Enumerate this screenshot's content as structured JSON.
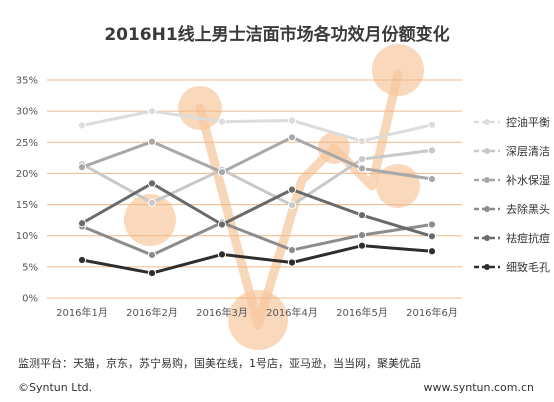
{
  "chart_data": {
    "type": "line",
    "title": "2016H1线上男士洁面市场各功效月份额变化",
    "categories": [
      "2016年1月",
      "2016年2月",
      "2016年3月",
      "2016年4月",
      "2016年5月",
      "2016年6月"
    ],
    "yticks": [
      "0%",
      "5%",
      "10%",
      "15%",
      "20%",
      "25%",
      "30%",
      "35%"
    ],
    "ylim": [
      0,
      35
    ],
    "grid": true,
    "legend_position": "right",
    "series": [
      {
        "name": "控油平衡",
        "color": "#dcdcdc",
        "values": [
          27.7,
          30.0,
          28.3,
          28.5,
          25.2,
          27.8
        ]
      },
      {
        "name": "深层清洁",
        "color": "#c8c8c8",
        "values": [
          21.5,
          15.3,
          20.6,
          14.9,
          22.3,
          23.7
        ]
      },
      {
        "name": "补水保湿",
        "color": "#a8a8a8",
        "values": [
          21.0,
          25.1,
          20.2,
          25.8,
          20.8,
          19.1
        ]
      },
      {
        "name": "去除黑头",
        "color": "#8c8c8c",
        "values": [
          11.5,
          6.9,
          12.1,
          7.7,
          10.1,
          11.8
        ]
      },
      {
        "name": "祛痘抗痘",
        "color": "#6a6a6a",
        "values": [
          12.0,
          18.4,
          11.8,
          17.4,
          13.3,
          9.9
        ]
      },
      {
        "name": "细致毛孔",
        "color": "#2e2e2e",
        "values": [
          6.1,
          4.0,
          7.0,
          5.7,
          8.4,
          7.5
        ]
      }
    ]
  },
  "footer": {
    "platforms": "监测平台：天猫，京东，苏宁易购，国美在线，1号店，亚马逊，当当网，聚美优品",
    "copyright": "©Syntun Ltd.",
    "website": "www.syntun.com.cn"
  },
  "colors": {
    "grid": "#f0b88a",
    "watermark": "#f6c8a0"
  }
}
